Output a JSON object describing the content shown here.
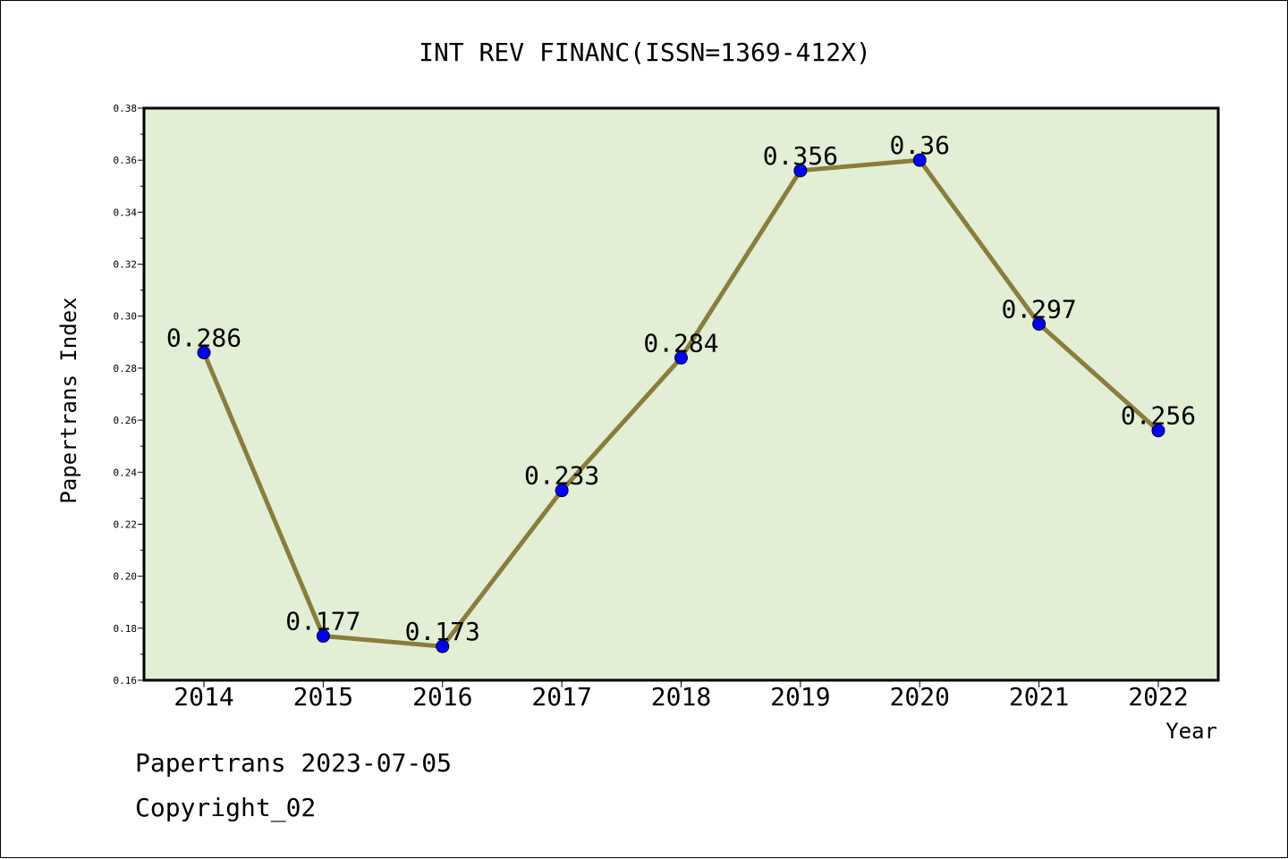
{
  "chart_data": {
    "type": "line",
    "title": "INT REV FINANC(ISSN=1369-412X)",
    "xlabel": "Year",
    "ylabel": "Papertrans Index",
    "categories": [
      "2014",
      "2015",
      "2016",
      "2017",
      "2018",
      "2019",
      "2020",
      "2021",
      "2022"
    ],
    "series": [
      {
        "values": [
          0.286,
          0.177,
          0.173,
          0.233,
          0.284,
          0.356,
          0.36,
          0.297,
          0.256
        ]
      }
    ],
    "data_labels": [
      "0.286",
      "0.177",
      "0.173",
      "0.233",
      "0.284",
      "0.356",
      "0.36",
      "0.297",
      "0.256"
    ],
    "ylim": [
      0.16,
      0.38
    ],
    "yticks": [
      "0.16",
      "0.18",
      "0.20",
      "0.22",
      "0.24",
      "0.26",
      "0.28",
      "0.30",
      "0.32",
      "0.34",
      "0.36",
      "0.38"
    ],
    "grid": false,
    "legend": "none",
    "colors": {
      "line": "#8B7D3A",
      "marker": "#0000FF",
      "plot_background": "#E2EFD5"
    }
  },
  "footer": {
    "line1": "Papertrans 2023-07-05",
    "line2": "Copyright_02"
  }
}
